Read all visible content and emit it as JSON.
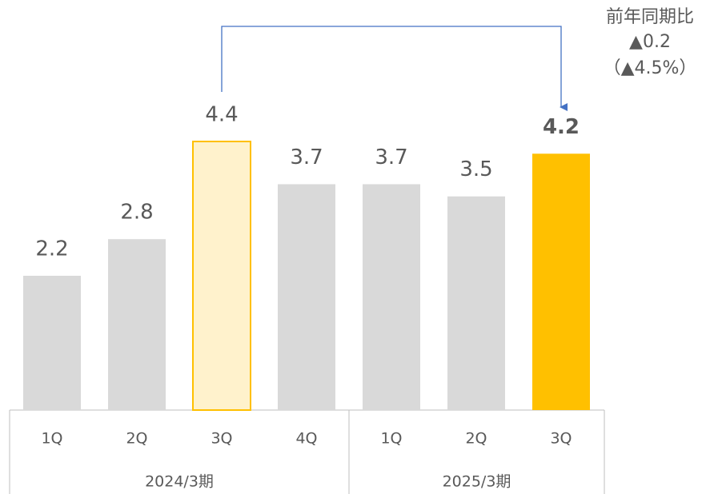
{
  "chart_data": {
    "type": "bar",
    "groups": [
      {
        "label": "2024/3期",
        "categories": [
          "1Q",
          "2Q",
          "3Q",
          "4Q"
        ],
        "values": [
          2.2,
          2.8,
          4.4,
          3.7
        ],
        "colors": [
          "#d9d9d9",
          "#d9d9d9",
          "#fff2cc",
          "#d9d9d9"
        ],
        "edge_colors": [
          null,
          null,
          "#ffc000",
          null
        ],
        "label_weights": [
          "normal",
          "normal",
          "normal",
          "normal"
        ]
      },
      {
        "label": "2025/3期",
        "categories": [
          "1Q",
          "2Q",
          "3Q"
        ],
        "values": [
          3.7,
          3.5,
          4.2
        ],
        "colors": [
          "#d9d9d9",
          "#d9d9d9",
          "#ffc000"
        ],
        "edge_colors": [
          null,
          null,
          null
        ],
        "label_weights": [
          "normal",
          "normal",
          "bold"
        ]
      }
    ],
    "annotation": {
      "lines": [
        "前年同期比",
        "▲0.2",
        "（▲4.5%）"
      ],
      "color": "#4472c4"
    }
  }
}
